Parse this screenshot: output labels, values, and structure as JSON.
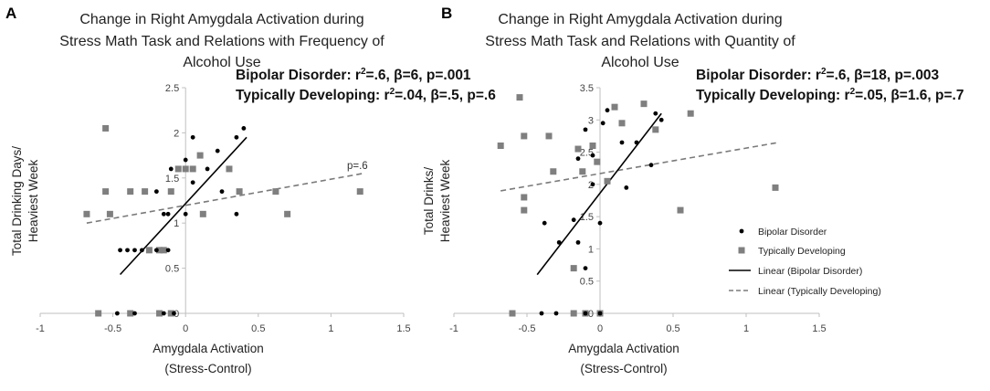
{
  "chart_data": [
    {
      "panel": "A",
      "type": "scatter",
      "title": [
        "Change in Right Amygdala Activation during",
        "Stress Math Task and Relations with Frequency of",
        "Alcohol Use"
      ],
      "stats": [
        {
          "label": "Bipolar Disorder:",
          "r2": "r",
          "sup": "2",
          "rest": "=.6, β=6, p=.001"
        },
        {
          "label": "Typically Developing:",
          "r2": "r",
          "sup": "2",
          "rest": "=.04, β=.5, p=.6"
        }
      ],
      "xlabel": [
        "Amygdala Activation",
        "(Stress-Control)"
      ],
      "ylabel": [
        "Total Drinking Days/",
        "Heaviest Week"
      ],
      "xlim": [
        -1,
        1.5
      ],
      "ylim": [
        0,
        2.5
      ],
      "xticks": [
        -1,
        -0.5,
        0,
        0.5,
        1,
        1.5
      ],
      "xtick_labels": [
        "-1",
        "-0.5",
        "0",
        "0.5",
        "1",
        "1.5"
      ],
      "yticks": [
        0.5,
        1,
        1.5,
        2,
        2.5
      ],
      "ytick_labels": [
        "0.5",
        "1",
        "1.5",
        "2",
        "2.5"
      ],
      "y_zero_label": "0",
      "bd_points": [
        [
          -0.45,
          0.7
        ],
        [
          -0.4,
          0.7
        ],
        [
          -0.35,
          0.7
        ],
        [
          -0.3,
          0.7
        ],
        [
          -0.2,
          0.7
        ],
        [
          -0.12,
          0.7
        ],
        [
          -0.2,
          1.35
        ],
        [
          -0.15,
          1.1
        ],
        [
          -0.12,
          1.1
        ],
        [
          -0.1,
          1.6
        ],
        [
          0.0,
          1.1
        ],
        [
          0.05,
          1.45
        ],
        [
          0.0,
          1.7
        ],
        [
          0.05,
          1.95
        ],
        [
          0.15,
          1.6
        ],
        [
          0.22,
          1.8
        ],
        [
          0.25,
          1.35
        ],
        [
          0.35,
          1.1
        ],
        [
          0.35,
          1.95
        ],
        [
          0.4,
          2.05
        ],
        [
          -0.47,
          0.0
        ],
        [
          -0.35,
          0.0
        ],
        [
          -0.15,
          0.0
        ],
        [
          -0.08,
          0.0
        ]
      ],
      "td_points": [
        [
          -0.68,
          1.1
        ],
        [
          -0.55,
          2.05
        ],
        [
          -0.55,
          1.35
        ],
        [
          -0.52,
          1.1
        ],
        [
          -0.38,
          1.35
        ],
        [
          -0.28,
          1.35
        ],
        [
          -0.25,
          0.7
        ],
        [
          -0.18,
          0.7
        ],
        [
          -0.15,
          0.7
        ],
        [
          -0.1,
          1.35
        ],
        [
          -0.05,
          1.6
        ],
        [
          0.0,
          1.6
        ],
        [
          0.05,
          1.6
        ],
        [
          0.1,
          1.75
        ],
        [
          0.12,
          1.1
        ],
        [
          0.3,
          1.6
        ],
        [
          0.37,
          1.35
        ],
        [
          0.62,
          1.35
        ],
        [
          0.7,
          1.1
        ],
        [
          1.2,
          1.35
        ],
        [
          -0.6,
          0.0
        ],
        [
          -0.38,
          0.0
        ],
        [
          -0.18,
          0.0
        ],
        [
          -0.1,
          0.0
        ]
      ],
      "bd_line": [
        [
          -0.45,
          0.43
        ],
        [
          0.42,
          1.95
        ]
      ],
      "td_line": [
        [
          -0.68,
          1.0
        ],
        [
          1.22,
          1.55
        ]
      ],
      "line_annotation": "p=.6"
    },
    {
      "panel": "B",
      "type": "scatter",
      "title": [
        "Change in Right Amygdala Activation during",
        "Stress Math Task and Relations with Quantity of",
        "Alcohol Use"
      ],
      "stats": [
        {
          "label": "Bipolar Disorder:",
          "r2": "r",
          "sup": "2",
          "rest": "=.6, β=18, p=.003"
        },
        {
          "label": "Typically Developing:",
          "r2": "r",
          "sup": "2",
          "rest": "=.05, β=1.6, p=.7"
        }
      ],
      "xlabel": [
        "Amygdala Activation",
        "(Stress-Control)"
      ],
      "ylabel": [
        "Total Drinks/",
        "Heaviest Week"
      ],
      "xlim": [
        -1,
        1.5
      ],
      "ylim": [
        0,
        3.5
      ],
      "xticks": [
        -1,
        -0.5,
        0,
        0.5,
        1,
        1.5
      ],
      "xtick_labels": [
        "-1",
        "-0.5",
        "0",
        "0.5",
        "1",
        "1.5"
      ],
      "yticks": [
        0.5,
        1,
        1.5,
        2,
        2.5,
        3,
        3.5
      ],
      "ytick_labels": [
        "0.5",
        "1",
        "1.5",
        "2",
        "2.5",
        "3",
        "3.5"
      ],
      "y_zero_label": "0",
      "bd_points": [
        [
          -0.38,
          1.4
        ],
        [
          -0.28,
          1.1
        ],
        [
          -0.18,
          1.45
        ],
        [
          -0.15,
          1.1
        ],
        [
          -0.1,
          0.7
        ],
        [
          -0.15,
          2.4
        ],
        [
          -0.1,
          2.85
        ],
        [
          -0.05,
          2.45
        ],
        [
          0.0,
          1.4
        ],
        [
          0.02,
          2.95
        ],
        [
          0.05,
          3.15
        ],
        [
          0.15,
          2.65
        ],
        [
          0.18,
          1.95
        ],
        [
          0.25,
          2.65
        ],
        [
          0.35,
          2.3
        ],
        [
          0.38,
          3.1
        ],
        [
          0.42,
          3.0
        ],
        [
          -0.05,
          2.0
        ],
        [
          -0.4,
          0.0
        ],
        [
          -0.3,
          0.0
        ],
        [
          -0.1,
          0.0
        ],
        [
          0.0,
          0.0
        ]
      ],
      "td_points": [
        [
          -0.68,
          2.6
        ],
        [
          -0.55,
          3.35
        ],
        [
          -0.52,
          2.75
        ],
        [
          -0.52,
          1.8
        ],
        [
          -0.52,
          1.6
        ],
        [
          -0.35,
          2.75
        ],
        [
          -0.32,
          2.2
        ],
        [
          -0.18,
          0.7
        ],
        [
          -0.15,
          2.55
        ],
        [
          -0.12,
          2.2
        ],
        [
          -0.05,
          2.6
        ],
        [
          -0.02,
          2.35
        ],
        [
          0.05,
          2.05
        ],
        [
          0.1,
          3.2
        ],
        [
          0.15,
          2.95
        ],
        [
          0.3,
          3.25
        ],
        [
          0.38,
          2.85
        ],
        [
          0.55,
          1.6
        ],
        [
          0.62,
          3.1
        ],
        [
          1.2,
          1.95
        ],
        [
          -0.6,
          0.0
        ],
        [
          -0.18,
          0.0
        ],
        [
          -0.1,
          0.0
        ],
        [
          0.0,
          0.0
        ]
      ],
      "bd_line": [
        [
          -0.43,
          0.6
        ],
        [
          0.42,
          3.1
        ]
      ],
      "td_line": [
        [
          -0.68,
          1.9
        ],
        [
          1.22,
          2.65
        ]
      ],
      "legend": {
        "placement": "right",
        "bd_label": "Bipolar Disorder",
        "td_label": "Typically Developing",
        "bd_line_label": "Linear (Bipolar Disorder)",
        "td_line_label": "Linear (Typically Developing)"
      }
    }
  ],
  "colors": {
    "bd": "#000000",
    "td": "#7f7f7f",
    "axis": "#bfbfbf",
    "td_line": "#7a7a7a"
  }
}
